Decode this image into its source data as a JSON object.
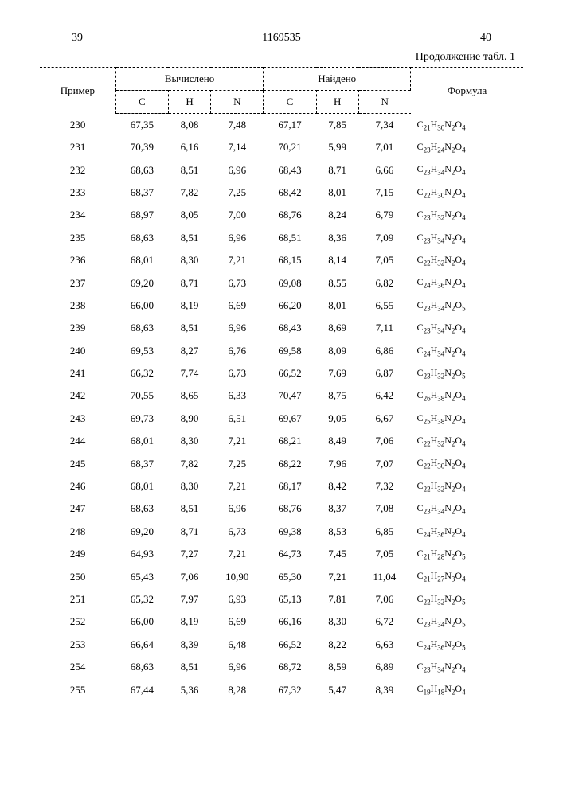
{
  "page_left": "39",
  "doc_id": "1169535",
  "page_right": "40",
  "continuation": "Продолжение табл. 1",
  "headers": {
    "primer": "Пример",
    "calc": "Вычислено",
    "found": "Найдено",
    "formula": "Формула",
    "c": "C",
    "h": "H",
    "n": "N"
  },
  "rows": [
    {
      "ex": "230",
      "cc": "67,35",
      "ch": "8,08",
      "cn": "7,48",
      "fc": "67,17",
      "fh": "7,85",
      "fn": "7,34",
      "f": "C₂₁H₃₀N₂O₄"
    },
    {
      "ex": "231",
      "cc": "70,39",
      "ch": "6,16",
      "cn": "7,14",
      "fc": "70,21",
      "fh": "5,99",
      "fn": "7,01",
      "f": "C₂₃H₂₄N₂O₄"
    },
    {
      "ex": "232",
      "cc": "68,63",
      "ch": "8,51",
      "cn": "6,96",
      "fc": "68,43",
      "fh": "8,71",
      "fn": "6,66",
      "f": "C₂₃H₃₄N₂O₄"
    },
    {
      "ex": "233",
      "cc": "68,37",
      "ch": "7,82",
      "cn": "7,25",
      "fc": "68,42",
      "fh": "8,01",
      "fn": "7,15",
      "f": "C₂₂H₃₀N₂O₄"
    },
    {
      "ex": "234",
      "cc": "68,97",
      "ch": "8,05",
      "cn": "7,00",
      "fc": "68,76",
      "fh": "8,24",
      "fn": "6,79",
      "f": "C₂₃H₃₂N₂O₄"
    },
    {
      "ex": "235",
      "cc": "68,63",
      "ch": "8,51",
      "cn": "6,96",
      "fc": "68,51",
      "fh": "8,36",
      "fn": "7,09",
      "f": "C₂₃H₃₄N₂O₄"
    },
    {
      "ex": "236",
      "cc": "68,01",
      "ch": "8,30",
      "cn": "7,21",
      "fc": "68,15",
      "fh": "8,14",
      "fn": "7,05",
      "f": "C₂₂H₃₂N₂O₄"
    },
    {
      "ex": "237",
      "cc": "69,20",
      "ch": "8,71",
      "cn": "6,73",
      "fc": "69,08",
      "fh": "8,55",
      "fn": "6,82",
      "f": "C₂₄H₃₆N₂O₄"
    },
    {
      "ex": "238",
      "cc": "66,00",
      "ch": "8,19",
      "cn": "6,69",
      "fc": "66,20",
      "fh": "8,01",
      "fn": "6,55",
      "f": "C₂₃H₃₄N₂O₅"
    },
    {
      "ex": "239",
      "cc": "68,63",
      "ch": "8,51",
      "cn": "6,96",
      "fc": "68,43",
      "fh": "8,69",
      "fn": "7,11",
      "f": "C₂₃H₃₄N₂O₄"
    },
    {
      "ex": "240",
      "cc": "69,53",
      "ch": "8,27",
      "cn": "6,76",
      "fc": "69,58",
      "fh": "8,09",
      "fn": "6,86",
      "f": "C₂₄H₃₄N₂O₄"
    },
    {
      "ex": "241",
      "cc": "66,32",
      "ch": "7,74",
      "cn": "6,73",
      "fc": "66,52",
      "fh": "7,69",
      "fn": "6,87",
      "f": "C₂₃H₃₂N₂O₅"
    },
    {
      "ex": "242",
      "cc": "70,55",
      "ch": "8,65",
      "cn": "6,33",
      "fc": "70,47",
      "fh": "8,75",
      "fn": "6,42",
      "f": "C₂₆H₃₈N₂O₄"
    },
    {
      "ex": "243",
      "cc": "69,73",
      "ch": "8,90",
      "cn": "6,51",
      "fc": "69,67",
      "fh": "9,05",
      "fn": "6,67",
      "f": "C₂₅H₃₈N₂O₄"
    },
    {
      "ex": "244",
      "cc": "68,01",
      "ch": "8,30",
      "cn": "7,21",
      "fc": "68,21",
      "fh": "8,49",
      "fn": "7,06",
      "f": "C₂₂H₃₂N₂O₄"
    },
    {
      "ex": "245",
      "cc": "68,37",
      "ch": "7,82",
      "cn": "7,25",
      "fc": "68,22",
      "fh": "7,96",
      "fn": "7,07",
      "f": "C₂₂H₃₀N₂O₄"
    },
    {
      "ex": "246",
      "cc": "68,01",
      "ch": "8,30",
      "cn": "7,21",
      "fc": "68,17",
      "fh": "8,42",
      "fn": "7,32",
      "f": "C₂₂H₃₂N₂O₄"
    },
    {
      "ex": "247",
      "cc": "68,63",
      "ch": "8,51",
      "cn": "6,96",
      "fc": "68,76",
      "fh": "8,37",
      "fn": "7,08",
      "f": "C₂₃H₃₄N₂O₄"
    },
    {
      "ex": "248",
      "cc": "69,20",
      "ch": "8,71",
      "cn": "6,73",
      "fc": "69,38",
      "fh": "8,53",
      "fn": "6,85",
      "f": "C₂₄H₃₆N₂O₄"
    },
    {
      "ex": "249",
      "cc": "64,93",
      "ch": "7,27",
      "cn": "7,21",
      "fc": "64,73",
      "fh": "7,45",
      "fn": "7,05",
      "f": "C₂₁H₂₈N₂O₅"
    },
    {
      "ex": "250",
      "cc": "65,43",
      "ch": "7,06",
      "cn": "10,90",
      "fc": "65,30",
      "fh": "7,21",
      "fn": "11,04",
      "f": "C₂₁H₂₇N₃O₄"
    },
    {
      "ex": "251",
      "cc": "65,32",
      "ch": "7,97",
      "cn": "6,93",
      "fc": "65,13",
      "fh": "7,81",
      "fn": "7,06",
      "f": "C₂₂H₃₂N₂O₅"
    },
    {
      "ex": "252",
      "cc": "66,00",
      "ch": "8,19",
      "cn": "6,69",
      "fc": "66,16",
      "fh": "8,30",
      "fn": "6,72",
      "f": "C₂₃H₃₄N₂O₅"
    },
    {
      "ex": "253",
      "cc": "66,64",
      "ch": "8,39",
      "cn": "6,48",
      "fc": "66,52",
      "fh": "8,22",
      "fn": "6,63",
      "f": "C₂₄H₃₆N₂O₅"
    },
    {
      "ex": "254",
      "cc": "68,63",
      "ch": "8,51",
      "cn": "6,96",
      "fc": "68,72",
      "fh": "8,59",
      "fn": "6,89",
      "f": "C₂₃H₃₄N₂O₄"
    },
    {
      "ex": "255",
      "cc": "67,44",
      "ch": "5,36",
      "cn": "8,28",
      "fc": "67,32",
      "fh": "5,47",
      "fn": "8,39",
      "f": "C₁₉H₁₈N₂O₄"
    }
  ]
}
